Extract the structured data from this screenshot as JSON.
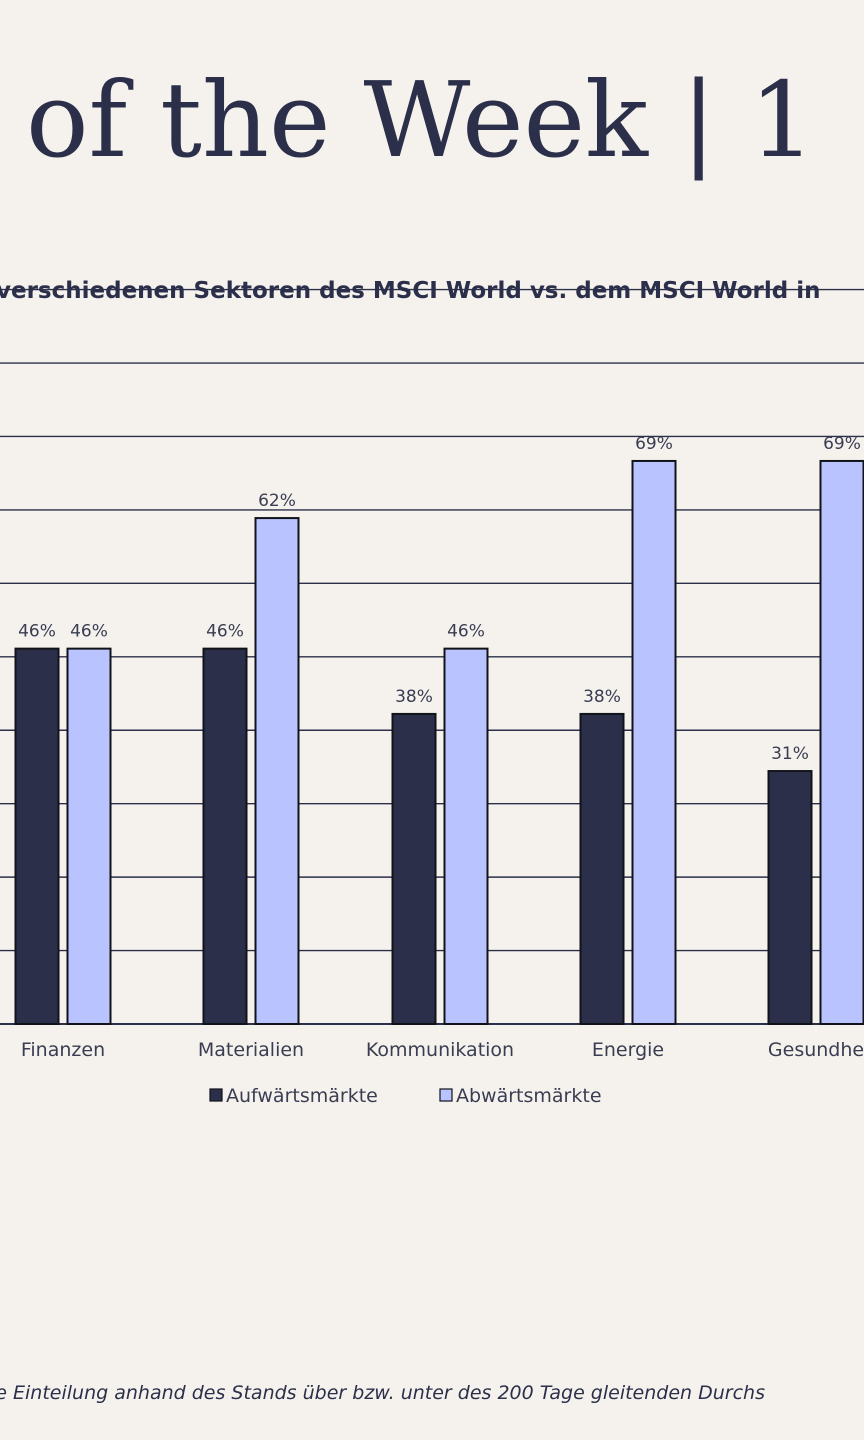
{
  "title": "of the Week | 1",
  "subtitle": "verschiedenen Sektoren des MSCI World vs. dem MSCI World in",
  "footnote": "ie Einteilung anhand des Stands über bzw. unter des 200 Tage gleitenden Durchs",
  "colors": {
    "background": "#f5f2ed",
    "text": "#2b2f4a",
    "series_up": "#2b2f4a",
    "series_down": "#b8c3ff",
    "grid": "#2b2f4a"
  },
  "chart_data": {
    "type": "bar",
    "categories": [
      "Finanzen",
      "Materialien",
      "Kommunikation",
      "Energie",
      "Gesundhe"
    ],
    "series": [
      {
        "name": "Aufwärtsmärkte",
        "values": [
          46,
          46,
          38,
          38,
          31
        ],
        "labels": [
          "46%",
          "46%",
          "38%",
          "38%",
          "31%"
        ]
      },
      {
        "name": "Abwärtsmärkte",
        "values": [
          46,
          62,
          46,
          69,
          69
        ],
        "labels": [
          "46%",
          "62%",
          "46%",
          "69%",
          "69%"
        ]
      }
    ],
    "ylim": [
      0,
      90
    ],
    "grid": true,
    "legend": "bottom-center"
  }
}
